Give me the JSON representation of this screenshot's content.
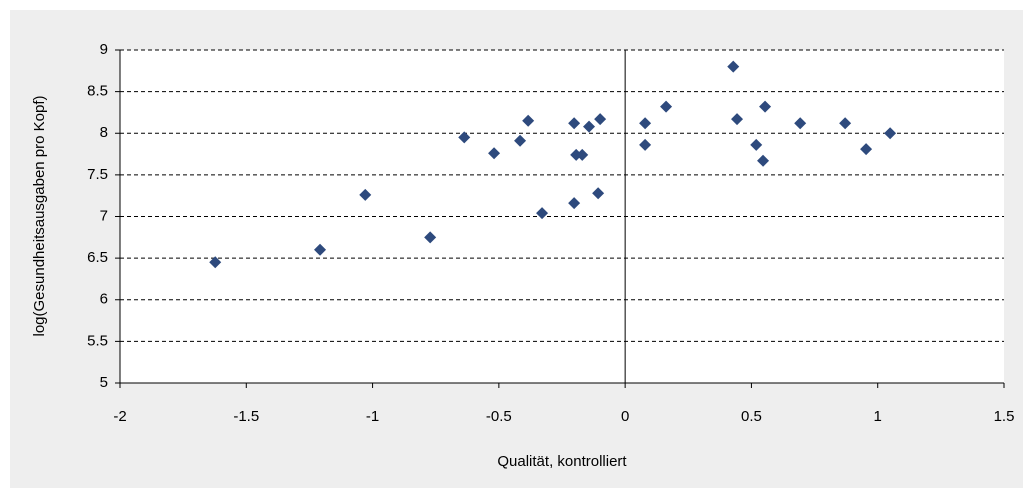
{
  "chart_data": {
    "type": "scatter",
    "x_label": "Qualität, kontrolliert",
    "y_label": "log(Gesundheitsausgaben pro Kopf)",
    "color": "#2e4a7d",
    "grid": true,
    "xlim": [
      -2,
      1.5
    ],
    "xticks": [
      -2,
      -1.5,
      -1,
      -0.5,
      0,
      0.5,
      1,
      1.5
    ],
    "ylim": [
      5,
      9
    ],
    "yticks": [
      5,
      5.5,
      6,
      6.5,
      7,
      7.5,
      8,
      8.5,
      9
    ],
    "x": [
      -1.623,
      -1.208,
      -1.029,
      -0.772,
      -0.637,
      -0.519,
      -0.416,
      -0.384,
      -0.329,
      -0.202,
      -0.194,
      -0.17,
      -0.202,
      -0.143,
      -0.099,
      -0.107,
      0.079,
      0.079,
      0.162,
      0.428,
      0.443,
      0.519,
      0.554,
      0.546,
      0.693,
      0.871,
      0.954,
      1.049
    ],
    "y": [
      6.45,
      6.6,
      7.26,
      6.75,
      7.95,
      7.76,
      7.91,
      8.15,
      7.04,
      8.12,
      7.74,
      7.74,
      7.16,
      8.08,
      8.17,
      7.28,
      8.12,
      7.86,
      8.32,
      8.8,
      8.17,
      7.86,
      8.32,
      7.67,
      8.12,
      8.12,
      7.81,
      8.0
    ]
  }
}
